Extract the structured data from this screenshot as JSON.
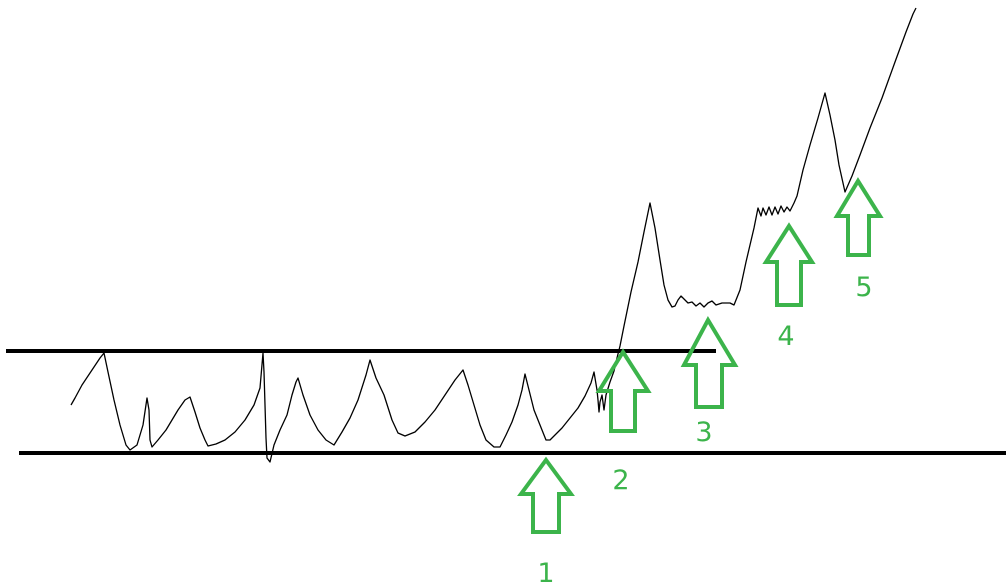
{
  "colors": {
    "background": "#ffffff",
    "price_line": "#000000",
    "boundary_line": "#000000",
    "arrow": "#3cb44b",
    "label": "#3cb44b"
  },
  "arrows": [
    {
      "icon": "up-arrow-icon",
      "label": "1"
    },
    {
      "icon": "up-arrow-icon",
      "label": "2"
    },
    {
      "icon": "up-arrow-icon",
      "label": "3"
    },
    {
      "icon": "up-arrow-icon",
      "label": "4"
    },
    {
      "icon": "up-arrow-icon",
      "label": "5"
    }
  ]
}
